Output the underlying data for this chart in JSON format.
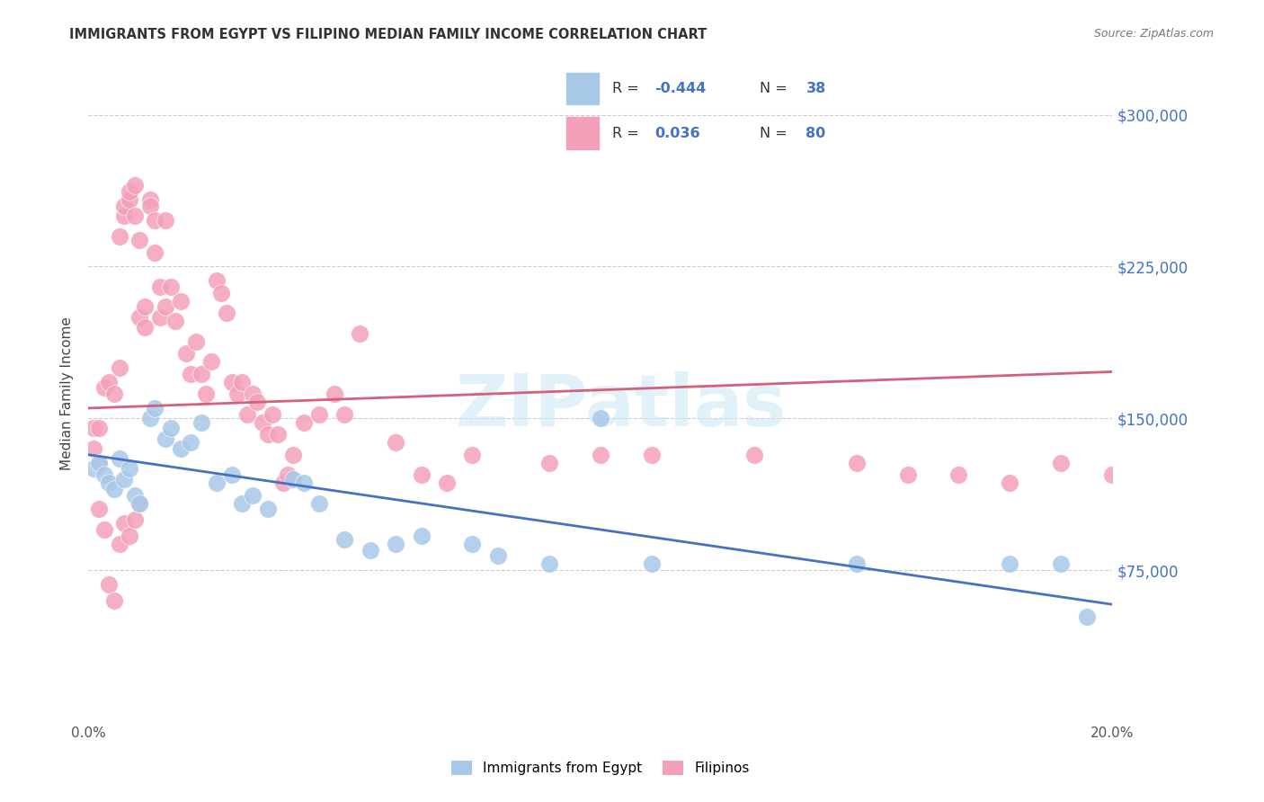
{
  "title": "IMMIGRANTS FROM EGYPT VS FILIPINO MEDIAN FAMILY INCOME CORRELATION CHART",
  "source": "Source: ZipAtlas.com",
  "ylabel": "Median Family Income",
  "xlim": [
    0.0,
    0.2
  ],
  "ylim": [
    0,
    325000
  ],
  "yticks": [
    75000,
    150000,
    225000,
    300000
  ],
  "ytick_labels": [
    "$75,000",
    "$150,000",
    "$225,000",
    "$300,000"
  ],
  "color_egypt": "#a8c8e8",
  "color_filipino": "#f4a0b8",
  "line_color_egypt": "#4472c4",
  "line_color_filipino": "#d4607a",
  "egypt_line_x0": 0.0,
  "egypt_line_y0": 132000,
  "egypt_line_x1": 0.2,
  "egypt_line_y1": 58000,
  "fil_line_x0": 0.0,
  "fil_line_y0": 155000,
  "fil_line_x1": 0.2,
  "fil_line_y1": 173000,
  "egypt_x": [
    0.001,
    0.002,
    0.003,
    0.004,
    0.005,
    0.006,
    0.007,
    0.008,
    0.009,
    0.01,
    0.012,
    0.013,
    0.015,
    0.016,
    0.018,
    0.02,
    0.022,
    0.025,
    0.028,
    0.03,
    0.032,
    0.035,
    0.04,
    0.042,
    0.045,
    0.05,
    0.055,
    0.06,
    0.065,
    0.075,
    0.08,
    0.09,
    0.1,
    0.11,
    0.15,
    0.18,
    0.19,
    0.195
  ],
  "egypt_y": [
    125000,
    128000,
    122000,
    118000,
    115000,
    130000,
    120000,
    125000,
    112000,
    108000,
    150000,
    155000,
    140000,
    145000,
    135000,
    138000,
    148000,
    118000,
    122000,
    108000,
    112000,
    105000,
    120000,
    118000,
    108000,
    90000,
    85000,
    88000,
    92000,
    88000,
    82000,
    78000,
    150000,
    78000,
    78000,
    78000,
    78000,
    52000
  ],
  "fil_x": [
    0.001,
    0.002,
    0.003,
    0.004,
    0.005,
    0.006,
    0.006,
    0.007,
    0.007,
    0.008,
    0.008,
    0.009,
    0.009,
    0.01,
    0.01,
    0.011,
    0.011,
    0.012,
    0.012,
    0.013,
    0.013,
    0.014,
    0.014,
    0.015,
    0.015,
    0.016,
    0.017,
    0.018,
    0.019,
    0.02,
    0.021,
    0.022,
    0.023,
    0.024,
    0.025,
    0.026,
    0.027,
    0.028,
    0.029,
    0.03,
    0.031,
    0.032,
    0.033,
    0.034,
    0.035,
    0.036,
    0.037,
    0.038,
    0.039,
    0.04,
    0.042,
    0.045,
    0.048,
    0.05,
    0.053,
    0.06,
    0.065,
    0.07,
    0.075,
    0.09,
    0.1,
    0.11,
    0.13,
    0.15,
    0.16,
    0.17,
    0.18,
    0.19,
    0.2,
    0.001,
    0.002,
    0.002,
    0.003,
    0.004,
    0.005,
    0.006,
    0.007,
    0.008,
    0.009,
    0.01
  ],
  "fil_y": [
    135000,
    128000,
    165000,
    168000,
    162000,
    175000,
    240000,
    250000,
    255000,
    258000,
    262000,
    265000,
    250000,
    238000,
    200000,
    195000,
    205000,
    258000,
    255000,
    232000,
    248000,
    215000,
    200000,
    205000,
    248000,
    215000,
    198000,
    208000,
    182000,
    172000,
    188000,
    172000,
    162000,
    178000,
    218000,
    212000,
    202000,
    168000,
    162000,
    168000,
    152000,
    162000,
    158000,
    148000,
    142000,
    152000,
    142000,
    118000,
    122000,
    132000,
    148000,
    152000,
    162000,
    152000,
    192000,
    138000,
    122000,
    118000,
    132000,
    128000,
    132000,
    132000,
    132000,
    128000,
    122000,
    122000,
    118000,
    128000,
    122000,
    145000,
    145000,
    105000,
    95000,
    68000,
    60000,
    88000,
    98000,
    92000,
    100000,
    108000
  ]
}
